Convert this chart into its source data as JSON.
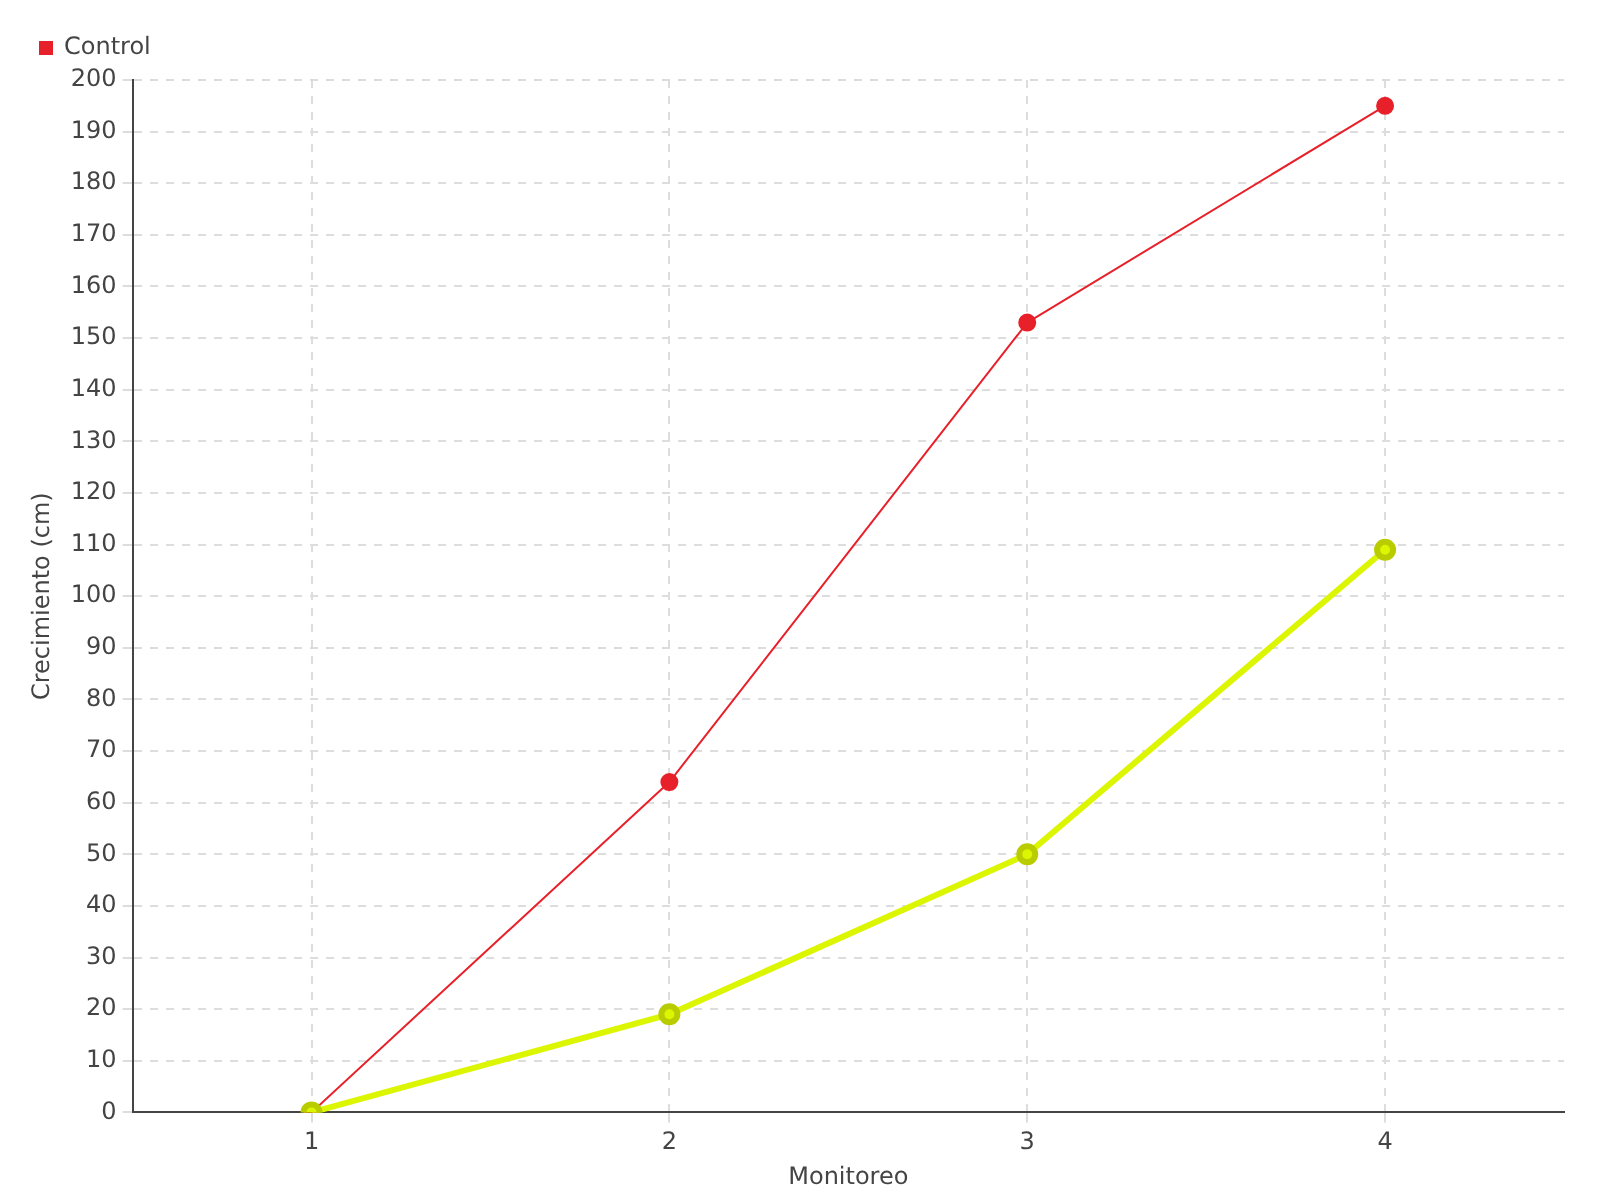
{
  "chart_data": {
    "type": "line",
    "xlabel": "Monitoreo",
    "ylabel": "Crecimiento (cm)",
    "x": [
      1,
      2,
      3,
      4
    ],
    "xlim": [
      0.5,
      4.5
    ],
    "xticks": [
      1,
      2,
      3,
      4
    ],
    "ylim": [
      0,
      200
    ],
    "yticks": [
      0,
      10,
      20,
      30,
      40,
      50,
      60,
      70,
      80,
      90,
      100,
      110,
      120,
      130,
      140,
      150,
      160,
      170,
      180,
      190,
      200
    ],
    "grid": true,
    "legend": "top left",
    "marker": "circle",
    "series": [
      {
        "color": "#dcf500",
        "values": [
          0,
          19,
          50,
          109
        ]
      },
      {
        "name": "Control",
        "color": "#e8202a",
        "values": [
          0,
          64,
          153,
          195
        ]
      }
    ]
  }
}
